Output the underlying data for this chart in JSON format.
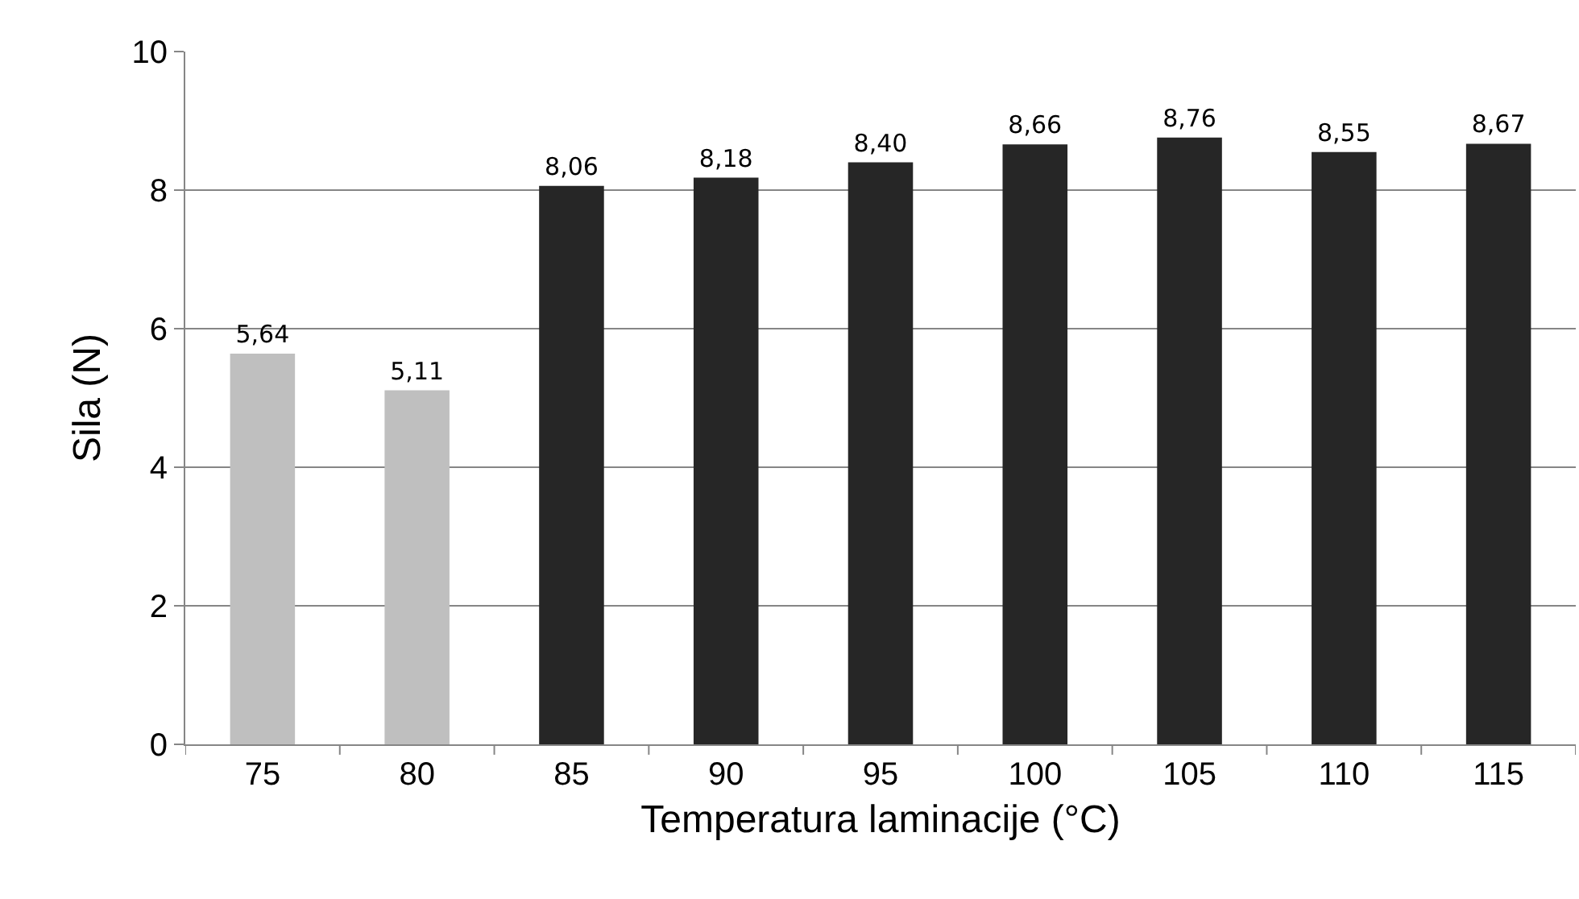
{
  "chart_data": {
    "type": "bar",
    "xlabel": "Temperatura laminacije (°C)",
    "ylabel": "Sila (N)",
    "categories": [
      "75",
      "80",
      "85",
      "90",
      "95",
      "100",
      "105",
      "110",
      "115"
    ],
    "values": [
      5.64,
      5.11,
      8.06,
      8.18,
      8.4,
      8.66,
      8.76,
      8.55,
      8.67
    ],
    "colors": [
      "#bfbfbf",
      "#bfbfbf",
      "#262626",
      "#262626",
      "#262626",
      "#262626",
      "#262626",
      "#262626",
      "#262626"
    ],
    "value_labels": [
      "5,64",
      "5,11",
      "8,06",
      "8,18",
      "8,40",
      "8,66",
      "8,76",
      "8,55",
      "8,67"
    ],
    "ylim": [
      0,
      10
    ],
    "yticks": [
      0,
      2,
      4,
      6,
      8,
      10
    ],
    "grid": "y"
  }
}
